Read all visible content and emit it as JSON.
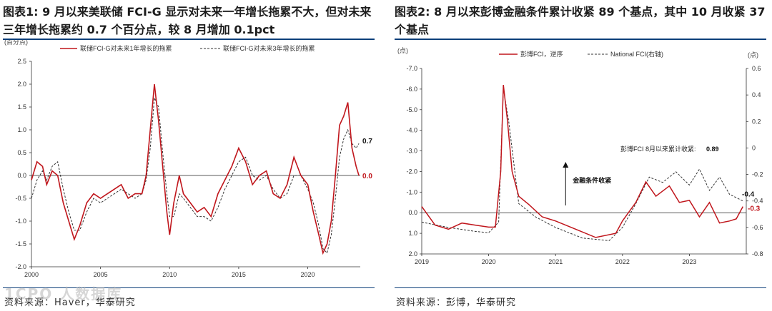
{
  "left": {
    "title": "图表1:  9 月以来美联储 FCI-G 显示对未来一年增长拖累不大，但对未来三年增长拖累约 0.7 个百分点，较 8 月增加 0.1pct",
    "source": "资料来源：Haver，华泰研究",
    "watermark": "1CPO  人数据库",
    "colors": {
      "series1": "#c0161c",
      "series2": "#333333",
      "axis": "#333333"
    },
    "chart_data": {
      "type": "line",
      "unit_label": "(百分点)",
      "ylim": [
        -2.0,
        2.5
      ],
      "yticks": [
        -2.0,
        -1.5,
        -1.0,
        -0.5,
        0.0,
        0.5,
        1.0,
        1.5,
        2.0,
        2.5
      ],
      "ytick_labels": [
        "-2.0",
        "-1.5",
        "-1.0",
        "-0.5",
        "0.0",
        "0.5",
        "1.0",
        "1.5",
        "2.0",
        "2.5"
      ],
      "xlim": [
        2000,
        2023.8
      ],
      "xticks": [
        2000,
        2005,
        2010,
        2015,
        2020
      ],
      "xtick_labels": [
        "2000",
        "2005",
        "2010",
        "2015",
        "2020"
      ],
      "legend_position": "top",
      "series": [
        {
          "name": "联储FCI-G对未来1年增长的拖累",
          "style": "solid",
          "end_label": "0.0",
          "x": [
            2000.0,
            2000.4,
            2000.8,
            2001.1,
            2001.5,
            2001.9,
            2002.3,
            2002.7,
            2003.1,
            2003.5,
            2004.0,
            2004.5,
            2005.0,
            2005.5,
            2006.0,
            2006.5,
            2007.0,
            2007.5,
            2008.0,
            2008.3,
            2008.6,
            2008.9,
            2009.2,
            2009.5,
            2009.8,
            2010.0,
            2010.3,
            2010.7,
            2011.0,
            2011.5,
            2012.0,
            2012.5,
            2013.0,
            2013.5,
            2014.0,
            2014.5,
            2015.0,
            2015.5,
            2016.0,
            2016.5,
            2017.0,
            2017.5,
            2018.0,
            2018.5,
            2019.0,
            2019.5,
            2020.0,
            2020.4,
            2020.8,
            2021.1,
            2021.4,
            2021.7,
            2022.0,
            2022.3,
            2022.6,
            2022.9,
            2023.2,
            2023.5,
            2023.7
          ],
          "y": [
            -0.1,
            0.3,
            0.2,
            -0.2,
            0.1,
            0.0,
            -0.6,
            -1.0,
            -1.4,
            -1.1,
            -0.6,
            -0.4,
            -0.5,
            -0.4,
            -0.3,
            -0.2,
            -0.5,
            -0.4,
            -0.4,
            0.0,
            1.0,
            2.0,
            1.2,
            0.2,
            -0.8,
            -1.3,
            -0.6,
            0.0,
            -0.4,
            -0.6,
            -0.8,
            -0.7,
            -0.9,
            -0.4,
            -0.1,
            0.2,
            0.6,
            0.3,
            -0.2,
            0.0,
            0.1,
            -0.4,
            -0.5,
            -0.2,
            0.4,
            0.0,
            -0.2,
            -0.8,
            -1.3,
            -1.7,
            -1.5,
            -1.0,
            0.0,
            1.1,
            1.3,
            1.6,
            0.6,
            0.2,
            0.0
          ]
        },
        {
          "name": "联储FCI-G对未来3年增长的拖累",
          "style": "dashed",
          "end_label": "0.7",
          "x": [
            2000.0,
            2000.4,
            2000.8,
            2001.1,
            2001.5,
            2001.9,
            2002.3,
            2002.7,
            2003.1,
            2003.5,
            2004.0,
            2004.5,
            2005.0,
            2005.5,
            2006.0,
            2006.5,
            2007.0,
            2007.5,
            2008.0,
            2008.3,
            2008.6,
            2008.9,
            2009.2,
            2009.5,
            2009.8,
            2010.0,
            2010.3,
            2010.7,
            2011.0,
            2011.5,
            2012.0,
            2012.5,
            2013.0,
            2013.5,
            2014.0,
            2014.5,
            2015.0,
            2015.5,
            2016.0,
            2016.5,
            2017.0,
            2017.5,
            2018.0,
            2018.5,
            2019.0,
            2019.5,
            2020.0,
            2020.4,
            2020.8,
            2021.1,
            2021.4,
            2021.7,
            2022.0,
            2022.3,
            2022.6,
            2022.9,
            2023.2,
            2023.5,
            2023.7
          ],
          "y": [
            -0.5,
            -0.1,
            0.1,
            -0.1,
            0.2,
            0.3,
            -0.3,
            -0.8,
            -1.2,
            -1.2,
            -0.8,
            -0.5,
            -0.6,
            -0.5,
            -0.4,
            -0.3,
            -0.4,
            -0.5,
            -0.4,
            -0.1,
            0.6,
            1.7,
            1.5,
            0.5,
            -0.4,
            -0.9,
            -0.9,
            -0.4,
            -0.5,
            -0.7,
            -0.9,
            -0.9,
            -1.0,
            -0.7,
            -0.3,
            0.0,
            0.3,
            0.4,
            0.0,
            -0.1,
            0.0,
            -0.3,
            -0.5,
            -0.4,
            0.0,
            0.0,
            -0.3,
            -0.6,
            -1.1,
            -1.6,
            -1.7,
            -1.3,
            -0.5,
            0.4,
            0.8,
            1.0,
            0.7,
            0.6,
            0.7
          ]
        }
      ]
    }
  },
  "right": {
    "title": "图表2:  8 月以来彭博金融条件累计收紧 89 个基点，其中 10 月收紧 37 个基点",
    "source": "资料来源：彭博，华泰研究",
    "colors": {
      "series1": "#c0161c",
      "series2": "#333333",
      "axis": "#333333"
    },
    "chart_data": {
      "type": "line",
      "left_unit_label": "(点)",
      "right_unit_label": "(点)",
      "left_ylim": [
        2.0,
        -7.0
      ],
      "left_yticks": [
        -7.0,
        -6.0,
        -5.0,
        -4.0,
        -3.0,
        -2.0,
        -1.0,
        0.0,
        1.0,
        2.0
      ],
      "left_ytick_labels": [
        "-7.0",
        "-6.0",
        "-5.0",
        "-4.0",
        "-3.0",
        "-2.0",
        "-1.0",
        "0.0",
        "1.0",
        "2.0"
      ],
      "left_inverted": true,
      "right_ylim": [
        -0.8,
        0.6
      ],
      "right_yticks": [
        0.6,
        0.4,
        0.2,
        0,
        -0.2,
        -0.4,
        -0.6,
        -0.8
      ],
      "right_ytick_labels": [
        "0.6",
        "0.4",
        "0.2",
        "0",
        "-0.2",
        "-0.4",
        "-0.6",
        "-0.8"
      ],
      "xlim": [
        2019.0,
        2023.85
      ],
      "xticks": [
        2019,
        2020,
        2021,
        2022,
        2023
      ],
      "xtick_labels": [
        "2019",
        "2020",
        "2021",
        "2022",
        "2023"
      ],
      "legend_position": "top",
      "annotations": [
        {
          "text": "彭博FCI 8月以来累计收紧: ",
          "value": "0.89"
        },
        {
          "text": "金融条件收紧"
        }
      ],
      "series": [
        {
          "name": "彭博FCI，逆序",
          "style": "solid",
          "axis": "left",
          "end_label": "-0.3",
          "x": [
            2019.0,
            2019.2,
            2019.4,
            2019.6,
            2019.8,
            2020.0,
            2020.1,
            2020.18,
            2020.22,
            2020.28,
            2020.35,
            2020.45,
            2020.6,
            2020.8,
            2021.0,
            2021.3,
            2021.6,
            2021.9,
            2022.0,
            2022.2,
            2022.35,
            2022.5,
            2022.7,
            2022.85,
            2023.0,
            2023.15,
            2023.3,
            2023.45,
            2023.6,
            2023.7,
            2023.8
          ],
          "y": [
            -0.3,
            0.6,
            0.8,
            0.5,
            0.6,
            0.7,
            0.7,
            -2.0,
            -6.2,
            -4.5,
            -2.0,
            -0.8,
            -0.4,
            0.2,
            0.4,
            0.8,
            1.2,
            1.0,
            0.4,
            -0.5,
            -1.5,
            -0.8,
            -1.3,
            -0.5,
            -0.6,
            0.2,
            -0.5,
            0.5,
            0.4,
            0.3,
            -0.3
          ]
        },
        {
          "name": "National FCI(右轴)",
          "style": "dashed",
          "axis": "right",
          "end_label": "-0.4",
          "x": [
            2019.0,
            2019.4,
            2019.8,
            2020.0,
            2020.15,
            2020.22,
            2020.3,
            2020.45,
            2020.7,
            2021.0,
            2021.4,
            2021.8,
            2022.0,
            2022.2,
            2022.4,
            2022.6,
            2022.8,
            2023.0,
            2023.15,
            2023.3,
            2023.45,
            2023.6,
            2023.8
          ],
          "y": [
            -0.56,
            -0.6,
            -0.63,
            -0.64,
            -0.56,
            0.45,
            0.2,
            -0.42,
            -0.52,
            -0.6,
            -0.68,
            -0.7,
            -0.6,
            -0.42,
            -0.22,
            -0.26,
            -0.18,
            -0.28,
            -0.16,
            -0.32,
            -0.22,
            -0.35,
            -0.4
          ]
        }
      ]
    }
  }
}
